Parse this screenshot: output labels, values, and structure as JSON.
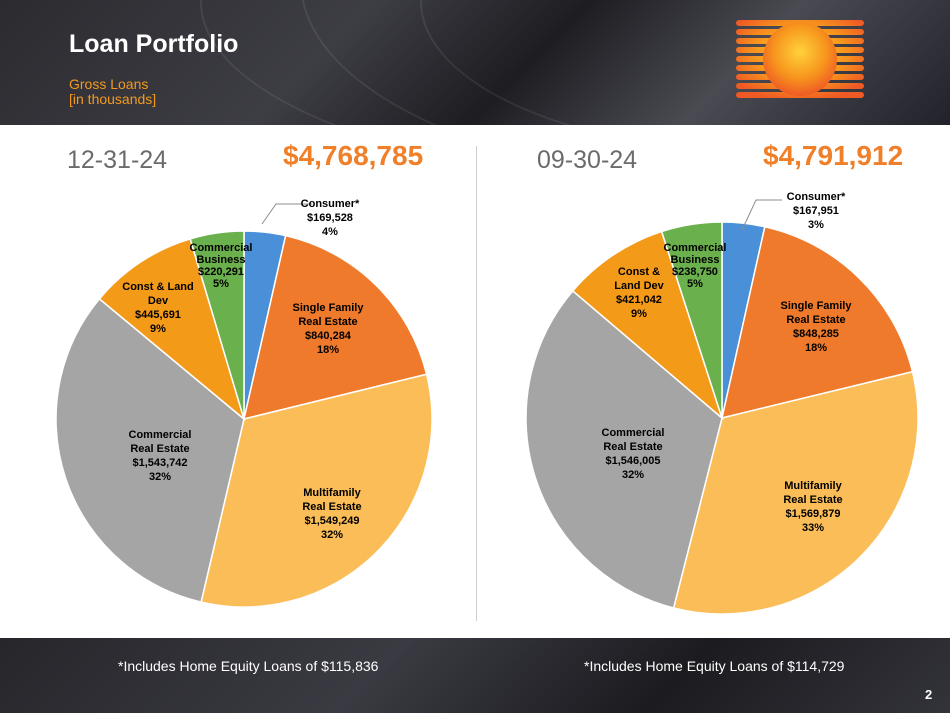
{
  "page": {
    "title": "Loan Portfolio",
    "subtitle": "Gross Loans\n[in thousands]",
    "page_number": "2"
  },
  "colors": {
    "consumer": "#4a90d9",
    "single_family": "#ef7a2b",
    "multifamily": "#fbbd58",
    "commercial_re": "#a5a5a5",
    "const_land": "#f49a19",
    "commercial_business": "#6ab04c",
    "total": "#f07f2a"
  },
  "chart_data": [
    {
      "type": "pie",
      "title": "12-31-24",
      "total": "$4,768,785",
      "footnote": "*Includes Home Equity Loans of $115,836",
      "slices": [
        {
          "key": "consumer",
          "lines": [
            "Consumer*",
            "$169,528",
            "4%"
          ],
          "value": 169528,
          "percent": 4
        },
        {
          "key": "single_family",
          "lines": [
            "Single Family",
            "Real Estate",
            "$840,284",
            "18%"
          ],
          "value": 840284,
          "percent": 18
        },
        {
          "key": "multifamily",
          "lines": [
            "Multifamily",
            "Real Estate",
            "$1,549,249",
            "32%"
          ],
          "value": 1549249,
          "percent": 32
        },
        {
          "key": "commercial_re",
          "lines": [
            "Commercial",
            "Real Estate",
            "$1,543,742",
            "32%"
          ],
          "value": 1543742,
          "percent": 32
        },
        {
          "key": "const_land",
          "lines": [
            "Const & Land",
            "Dev",
            "$445,691",
            "9%"
          ],
          "value": 445691,
          "percent": 9
        },
        {
          "key": "commercial_business",
          "lines": [
            "Commercial",
            "Business",
            "$220,291",
            "5%"
          ],
          "value": 220291,
          "percent": 5
        }
      ]
    },
    {
      "type": "pie",
      "title": "09-30-24",
      "total": "$4,791,912",
      "footnote": "*Includes Home Equity Loans of $114,729",
      "slices": [
        {
          "key": "consumer",
          "lines": [
            "Consumer*",
            "$167,951",
            "3%"
          ],
          "value": 167951,
          "percent": 3
        },
        {
          "key": "single_family",
          "lines": [
            "Single Family",
            "Real Estate",
            "$848,285",
            "18%"
          ],
          "value": 848285,
          "percent": 18
        },
        {
          "key": "multifamily",
          "lines": [
            "Multifamily",
            "Real Estate",
            "$1,569,879",
            "33%"
          ],
          "value": 1569879,
          "percent": 33
        },
        {
          "key": "commercial_re",
          "lines": [
            "Commercial",
            "Real Estate",
            "$1,546,005",
            "32%"
          ],
          "value": 1546005,
          "percent": 32
        },
        {
          "key": "const_land",
          "lines": [
            "Const &",
            "Land Dev",
            "$421,042",
            "9%"
          ],
          "value": 421042,
          "percent": 9
        },
        {
          "key": "commercial_business",
          "lines": [
            "Commercial",
            "Business",
            "$238,750",
            "5%"
          ],
          "value": 238750,
          "percent": 5
        }
      ]
    }
  ]
}
